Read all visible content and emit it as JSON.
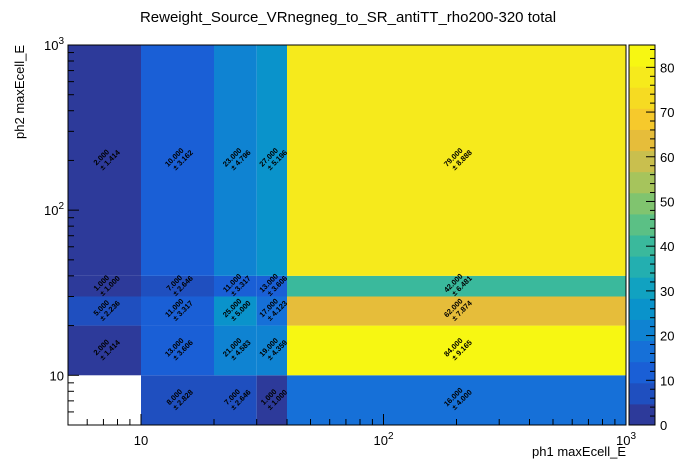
{
  "chart_data": {
    "type": "heatmap",
    "title": "Reweight_Source_VRnegneg_to_SR_antiTT_rho200-320 total",
    "xlabel": "ph1 maxEcell_E",
    "ylabel": "ph2 maxEcell_E",
    "x_scale": "log",
    "y_scale": "log",
    "xlim": [
      5,
      1000
    ],
    "ylim": [
      5,
      1000
    ],
    "x_tick_labels": [
      {
        "value": 10,
        "label": "10"
      },
      {
        "value": 100,
        "label": "10^2"
      },
      {
        "value": 1000,
        "label": "10^3"
      }
    ],
    "y_tick_labels": [
      {
        "value": 10,
        "label": "10"
      },
      {
        "value": 100,
        "label": "10^2"
      },
      {
        "value": 1000,
        "label": "10^3"
      }
    ],
    "x_bin_edges": [
      5,
      10,
      20,
      30,
      40,
      1000
    ],
    "y_bin_edges": [
      5,
      10,
      20,
      30,
      40,
      1000
    ],
    "zlim": [
      0,
      85
    ],
    "z_ticks": [
      0,
      10,
      20,
      30,
      40,
      50,
      60,
      70,
      80
    ],
    "cells": [
      {
        "xbin": 0,
        "ybin": 1,
        "value": 2,
        "label": "2.000",
        "error": "± 1.414"
      },
      {
        "xbin": 0,
        "ybin": 2,
        "value": 5,
        "label": "5.000",
        "error": "± 2.236"
      },
      {
        "xbin": 0,
        "ybin": 3,
        "value": 1,
        "label": "1.000",
        "error": "± 1.000"
      },
      {
        "xbin": 0,
        "ybin": 4,
        "value": 2,
        "label": "2.000",
        "error": "± 1.414"
      },
      {
        "xbin": 1,
        "ybin": 0,
        "value": 8,
        "label": "8.000",
        "error": "± 2.828"
      },
      {
        "xbin": 1,
        "ybin": 1,
        "value": 13,
        "label": "13.000",
        "error": "± 3.606"
      },
      {
        "xbin": 1,
        "ybin": 2,
        "value": 11,
        "label": "11.000",
        "error": "± 3.317"
      },
      {
        "xbin": 1,
        "ybin": 3,
        "value": 7,
        "label": "7.000",
        "error": "± 2.646"
      },
      {
        "xbin": 1,
        "ybin": 4,
        "value": 10,
        "label": "10.000",
        "error": "± 3.162"
      },
      {
        "xbin": 2,
        "ybin": 0,
        "value": 7,
        "label": "7.000",
        "error": "± 2.646"
      },
      {
        "xbin": 2,
        "ybin": 1,
        "value": 21,
        "label": "21.000",
        "error": "± 4.583"
      },
      {
        "xbin": 2,
        "ybin": 2,
        "value": 25,
        "label": "25.000",
        "error": "± 5.000"
      },
      {
        "xbin": 2,
        "ybin": 3,
        "value": 11,
        "label": "11.000",
        "error": "± 3.317"
      },
      {
        "xbin": 2,
        "ybin": 4,
        "value": 23,
        "label": "23.000",
        "error": "± 4.796"
      },
      {
        "xbin": 3,
        "ybin": 0,
        "value": 1,
        "label": "1.000",
        "error": "± 1.000"
      },
      {
        "xbin": 3,
        "ybin": 1,
        "value": 19,
        "label": "19.000",
        "error": "± 4.359"
      },
      {
        "xbin": 3,
        "ybin": 2,
        "value": 17,
        "label": "17.000",
        "error": "± 4.123"
      },
      {
        "xbin": 3,
        "ybin": 3,
        "value": 13,
        "label": "13.000",
        "error": "± 3.606"
      },
      {
        "xbin": 3,
        "ybin": 4,
        "value": 27,
        "label": "27.000",
        "error": "± 5.196"
      },
      {
        "xbin": 4,
        "ybin": 0,
        "value": 16,
        "label": "16.000",
        "error": "± 4.000"
      },
      {
        "xbin": 4,
        "ybin": 1,
        "value": 84,
        "label": "84.000",
        "error": "± 9.165"
      },
      {
        "xbin": 4,
        "ybin": 2,
        "value": 62,
        "label": "62.000",
        "error": "± 7.874"
      },
      {
        "xbin": 4,
        "ybin": 3,
        "value": 42,
        "label": "42.000",
        "error": "± 6.481"
      },
      {
        "xbin": 4,
        "ybin": 4,
        "value": 79,
        "label": "79.000",
        "error": "± 8.888"
      }
    ]
  }
}
